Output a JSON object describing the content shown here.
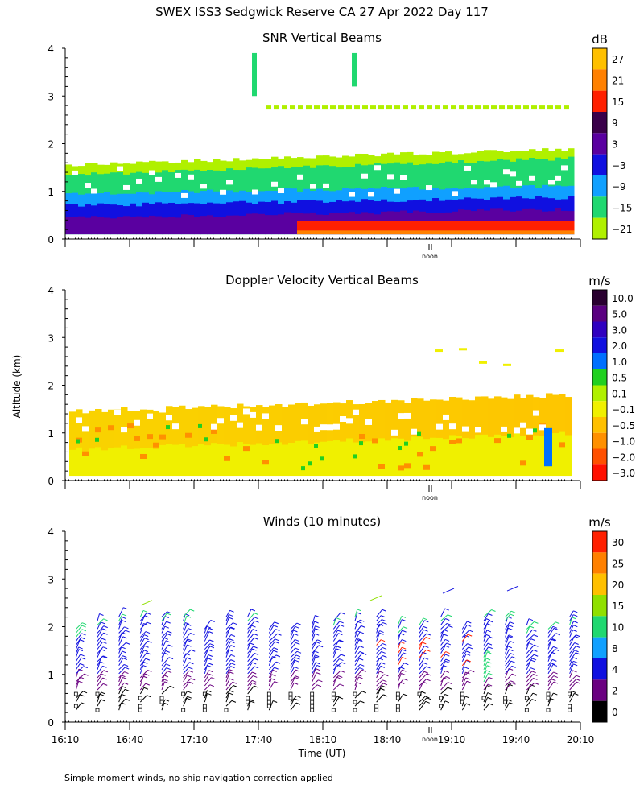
{
  "page": {
    "title": "SWEX ISS3 Sedgwick Reserve CA  27 Apr 2022 Day 117",
    "ylabel": "Altitude (km)",
    "xlabel": "Time (UT)",
    "footnote": "Simple moment winds, no ship navigation correction applied",
    "noon_label": "noon"
  },
  "chart_data": [
    {
      "type": "heatmap",
      "title": "SNR Vertical Beams",
      "units": "dB",
      "ylim": [
        0,
        4
      ],
      "yticks": [
        "0",
        "1",
        "2",
        "3",
        "4"
      ],
      "colorbar": {
        "labels": [
          "27",
          "21",
          "15",
          "9",
          "3",
          "−3",
          "−9",
          "−15",
          "−21"
        ],
        "colors": [
          "#ffc000",
          "#ff8000",
          "#ff2000",
          "#3a004a",
          "#5a00a0",
          "#1010e0",
          "#10a0ff",
          "#20d870",
          "#b0f000"
        ]
      }
    },
    {
      "type": "heatmap",
      "title": "Doppler Velocity Vertical Beams",
      "units": "m/s",
      "ylim": [
        0,
        4
      ],
      "yticks": [
        "0",
        "1",
        "2",
        "3",
        "4"
      ],
      "colorbar": {
        "labels": [
          "10.0",
          "5.0",
          "3.0",
          "2.0",
          "1.0",
          "0.5",
          "0.1",
          "−0.1",
          "−0.5",
          "−1.0",
          "−2.0",
          "−3.0"
        ],
        "colors": [
          "#2a0030",
          "#5a0080",
          "#3000c0",
          "#1010e0",
          "#0070ff",
          "#20d020",
          "#b0f000",
          "#f0f000",
          "#ffc000",
          "#ff9000",
          "#ff5000",
          "#ff1000"
        ]
      }
    },
    {
      "type": "scatter",
      "subtype": "wind-barbs",
      "title": "Winds (10 minutes)",
      "units": "m/s",
      "ylim": [
        0,
        4
      ],
      "yticks": [
        "0",
        "1",
        "2",
        "3",
        "4"
      ],
      "xlim_minutes_ut": [
        970,
        1210
      ],
      "xticks": [
        "16:10",
        "16:40",
        "17:10",
        "17:40",
        "18:10",
        "18:40",
        "19:10",
        "19:40",
        "20:10"
      ],
      "colorbar": {
        "labels": [
          "30",
          "25",
          "20",
          "15",
          "10",
          "8",
          "4",
          "2",
          "0"
        ],
        "colors": [
          "#ff2000",
          "#ff8000",
          "#ffc000",
          "#90e000",
          "#20d870",
          "#10a0ff",
          "#1010e0",
          "#6a0080",
          "#000000"
        ]
      },
      "profiles_time_ut": [
        "16:15",
        "16:25",
        "16:35",
        "16:45",
        "16:55",
        "17:05",
        "17:15",
        "17:25",
        "17:35",
        "17:45",
        "17:55",
        "18:05",
        "18:15",
        "18:25",
        "18:35",
        "18:45",
        "18:55",
        "19:05",
        "19:15",
        "19:25",
        "19:35",
        "19:45",
        "19:55",
        "20:05"
      ]
    }
  ]
}
